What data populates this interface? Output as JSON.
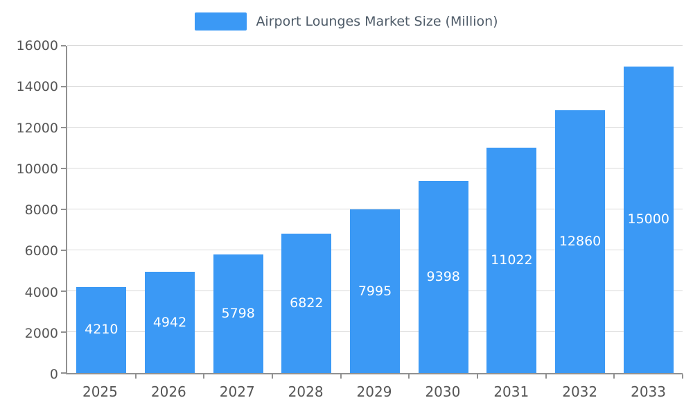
{
  "legend": {
    "label": "Airport Lounges Market Size (Million)"
  },
  "colors": {
    "bar": "#3b99f5",
    "value_text": "#ffffff",
    "axis_text": "#555555",
    "legend_text": "#4e5b68",
    "gridline": "#d9d9d9",
    "axis_line": "#919191"
  },
  "chart_data": {
    "type": "bar",
    "title": "Airport Lounges Market Size (Million)",
    "series_name": "Airport Lounges Market Size (Million)",
    "categories": [
      "2025",
      "2026",
      "2027",
      "2028",
      "2029",
      "2030",
      "2031",
      "2032",
      "2033"
    ],
    "values": [
      4210,
      4942,
      5798,
      6822,
      7995,
      9398,
      11022,
      12860,
      15000
    ],
    "xlabel": "",
    "ylabel": "",
    "ylim": [
      0,
      16000
    ],
    "ytick_step": 2000,
    "ytick_labels": [
      "0",
      "2000",
      "4000",
      "6000",
      "8000",
      "10000",
      "12000",
      "14000",
      "16000"
    ],
    "grid": true,
    "legend_position": "top",
    "value_labels": "inside-center"
  }
}
